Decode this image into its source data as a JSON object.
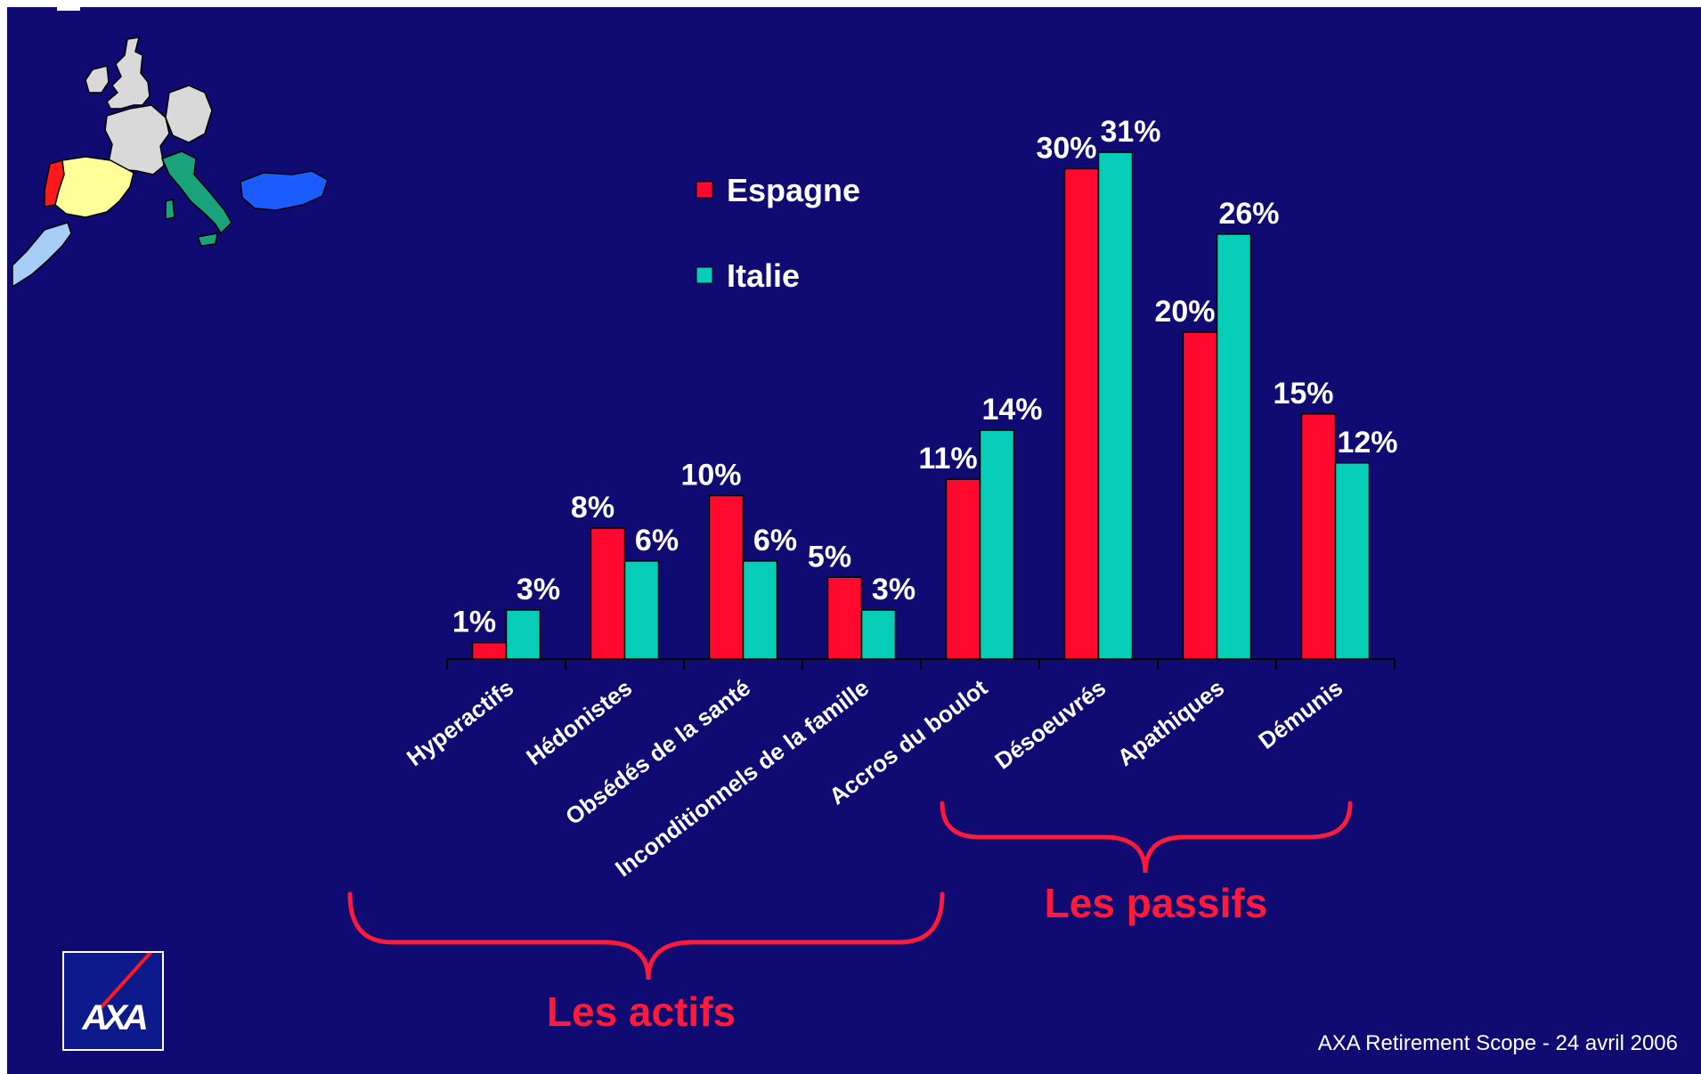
{
  "chart_data": {
    "type": "bar",
    "categories": [
      "Hyperactifs",
      "Hédonistes",
      "Obsédés de la santé",
      "Inconditionnels de la famille",
      "Accros du boulot",
      "Désoeuvrés",
      "Apathiques",
      "Démunis"
    ],
    "series": [
      {
        "name": "Espagne",
        "values": [
          1,
          8,
          10,
          5,
          11,
          30,
          20,
          15
        ],
        "color": "#ff0a2e"
      },
      {
        "name": "Italie",
        "values": [
          3,
          6,
          6,
          3,
          14,
          31,
          26,
          12
        ],
        "color": "#06cdb8"
      }
    ],
    "value_suffix": "%",
    "ylim": [
      0,
      31
    ],
    "legend_position": "top-center",
    "grid": false,
    "groups": [
      {
        "label": "Les actifs",
        "color": "#ff1a3a"
      },
      {
        "label": "Les passifs",
        "color": "#ff1a3a"
      }
    ]
  },
  "colors": {
    "background": "#0f0b72",
    "text": "#ffffff"
  },
  "map": {
    "countries": [
      "Portugal",
      "Espagne",
      "Italie",
      "Maroc",
      "Turquie",
      "France",
      "Royaume-Uni",
      "Irlande",
      "Allemagne"
    ]
  },
  "logo": {
    "text": "AXA"
  },
  "footer": {
    "text": "AXA Retirement Scope - 24 avril 2006"
  }
}
